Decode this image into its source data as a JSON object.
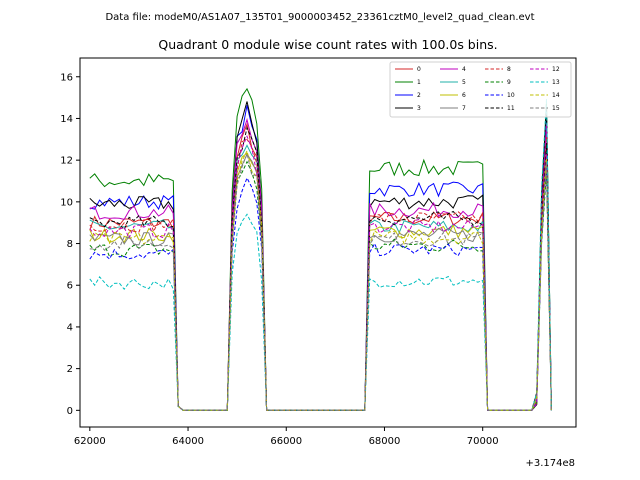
{
  "header": {
    "suptitle": "Data file: modeM0/AS1A07_135T01_9000003452_23361cztM0_level2_quad_clean.evt"
  },
  "chart_data": {
    "type": "line",
    "title": "Quadrant 0 module wise count rates with 100.0s bins.",
    "xlabel": "",
    "ylabel": "",
    "x_offset_label": "+3.174e8",
    "xlim": [
      61800,
      71900
    ],
    "ylim": [
      -0.8,
      16.9
    ],
    "xticks": [
      62000,
      64000,
      66000,
      68000,
      70000
    ],
    "xtick_labels": [
      "62000",
      "64000",
      "66000",
      "68000",
      "70000"
    ],
    "yticks": [
      0,
      2,
      4,
      6,
      8,
      10,
      12,
      14,
      16
    ],
    "ytick_labels": [
      "0",
      "2",
      "4",
      "6",
      "8",
      "10",
      "12",
      "14",
      "16"
    ],
    "grid": false,
    "legend_position": "top-right",
    "segments": [
      {
        "start": 62000,
        "end": 63700
      },
      {
        "start": 64900,
        "end": 65500
      },
      {
        "start": 67700,
        "end": 70000
      },
      {
        "start": 71100,
        "end": 71300
      }
    ],
    "series": [
      {
        "name": "0",
        "color": "#d62728",
        "dash": "solid",
        "levels": [
          9.0,
          13.5,
          9.2,
          12.5
        ],
        "noise": 0.35
      },
      {
        "name": "1",
        "color": "#008000",
        "dash": "solid",
        "levels": [
          11.0,
          15.5,
          11.6,
          15.0
        ],
        "noise": 0.4
      },
      {
        "name": "2",
        "color": "#0000ff",
        "dash": "solid",
        "levels": [
          10.0,
          14.3,
          10.6,
          14.0
        ],
        "noise": 0.35
      },
      {
        "name": "3",
        "color": "#000000",
        "dash": "solid",
        "levels": [
          9.9,
          14.5,
          10.0,
          14.5
        ],
        "noise": 0.35
      },
      {
        "name": "4",
        "color": "#bf00bf",
        "dash": "solid",
        "levels": [
          9.5,
          14.0,
          9.6,
          13.5
        ],
        "noise": 0.35
      },
      {
        "name": "5",
        "color": "#20b2aa",
        "dash": "solid",
        "levels": [
          8.8,
          13.0,
          8.8,
          12.5
        ],
        "noise": 0.35
      },
      {
        "name": "6",
        "color": "#bfbf00",
        "dash": "solid",
        "levels": [
          8.4,
          12.6,
          8.6,
          12.0
        ],
        "noise": 0.35
      },
      {
        "name": "7",
        "color": "#7f7f7f",
        "dash": "solid",
        "levels": [
          8.2,
          12.6,
          8.4,
          12.0
        ],
        "noise": 0.35
      },
      {
        "name": "8",
        "color": "#d62728",
        "dash": "dashed",
        "levels": [
          8.9,
          13.2,
          9.2,
          13.0
        ],
        "noise": 0.35
      },
      {
        "name": "9",
        "color": "#008000",
        "dash": "dashed",
        "levels": [
          7.7,
          12.0,
          7.9,
          11.5
        ],
        "noise": 0.35
      },
      {
        "name": "10",
        "color": "#0000ff",
        "dash": "dashed",
        "levels": [
          7.5,
          11.0,
          7.7,
          11.5
        ],
        "noise": 0.3
      },
      {
        "name": "11",
        "color": "#000000",
        "dash": "dashed",
        "levels": [
          9.0,
          13.5,
          9.2,
          13.0
        ],
        "noise": 0.35
      },
      {
        "name": "12",
        "color": "#bf00bf",
        "dash": "dashed",
        "levels": [
          8.6,
          13.0,
          8.8,
          12.5
        ],
        "noise": 0.35
      },
      {
        "name": "13",
        "color": "#00bfbf",
        "dash": "dashed",
        "levels": [
          6.1,
          9.3,
          6.2,
          15.0
        ],
        "noise": 0.3
      },
      {
        "name": "14",
        "color": "#bfbf00",
        "dash": "dashed",
        "levels": [
          8.2,
          12.4,
          8.3,
          12.0
        ],
        "noise": 0.35
      },
      {
        "name": "15",
        "color": "#7f7f7f",
        "dash": "dashed",
        "levels": [
          8.0,
          12.2,
          8.2,
          12.0
        ],
        "noise": 0.35
      }
    ]
  }
}
